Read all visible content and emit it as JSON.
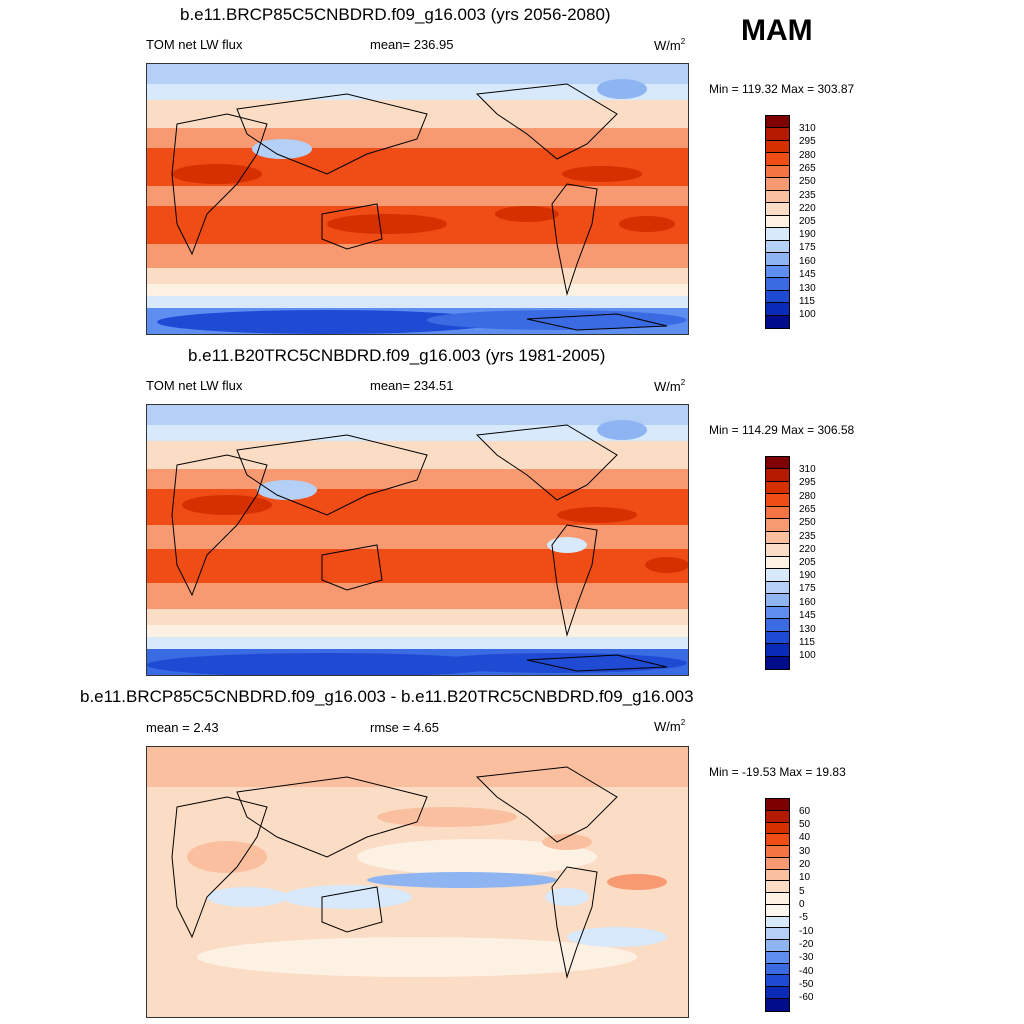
{
  "season": "MAM",
  "colors": {
    "abs_scale": [
      "#7f0000",
      "#b31a00",
      "#d62f00",
      "#ef4d15",
      "#f57444",
      "#f79a72",
      "#f9bf9f",
      "#fbdcc4",
      "#fdf1e4",
      "#d7e9fb",
      "#b4d0f7",
      "#8eb5f2",
      "#5e8ff0",
      "#3a6be3",
      "#1f4ad4",
      "#0a2ab8",
      "#000c8c"
    ],
    "diff_scale": [
      "#7f0000",
      "#b31a00",
      "#d62f00",
      "#ef4d15",
      "#f57444",
      "#f79a72",
      "#f9bf9f",
      "#fbdcc4",
      "#fdf1e4",
      "#fdf6ee",
      "#d7e9fb",
      "#b4d0f7",
      "#8eb5f2",
      "#5e8ff0",
      "#3a6be3",
      "#1f4ad4",
      "#0a2ab8",
      "#000c8c"
    ]
  },
  "panels": [
    {
      "title": "b.e11.BRCP85C5CNBDRD.f09_g16.003 (yrs 2056-2080)",
      "left_label": "TOM net LW flux",
      "center_label": "mean= 236.95",
      "units": "W/m",
      "units_sup": "2",
      "minmax": "Min = 119.32 Max = 303.87",
      "legend_labels": [
        "310",
        "295",
        "280",
        "265",
        "250",
        "235",
        "220",
        "205",
        "190",
        "175",
        "160",
        "145",
        "130",
        "115",
        "100"
      ]
    },
    {
      "title": "b.e11.B20TRC5CNBDRD.f09_g16.003 (yrs 1981-2005)",
      "left_label": "TOM net LW flux",
      "center_label": "mean= 234.51",
      "units": "W/m",
      "units_sup": "2",
      "minmax": "Min = 114.29 Max = 306.58",
      "legend_labels": [
        "310",
        "295",
        "280",
        "265",
        "250",
        "235",
        "220",
        "205",
        "190",
        "175",
        "160",
        "145",
        "130",
        "115",
        "100"
      ]
    },
    {
      "title": "b.e11.BRCP85C5CNBDRD.f09_g16.003 - b.e11.B20TRC5CNBDRD.f09_g16.003",
      "left_label": "mean =   2.43",
      "center_label": "rmse =   4.65",
      "units": "W/m",
      "units_sup": "2",
      "minmax": "Min = -19.53 Max =  19.83",
      "legend_labels": [
        "60",
        "50",
        "40",
        "30",
        "20",
        "10",
        "5",
        "0",
        "-5",
        "-10",
        "-20",
        "-30",
        "-40",
        "-50",
        "-60"
      ]
    }
  ]
}
